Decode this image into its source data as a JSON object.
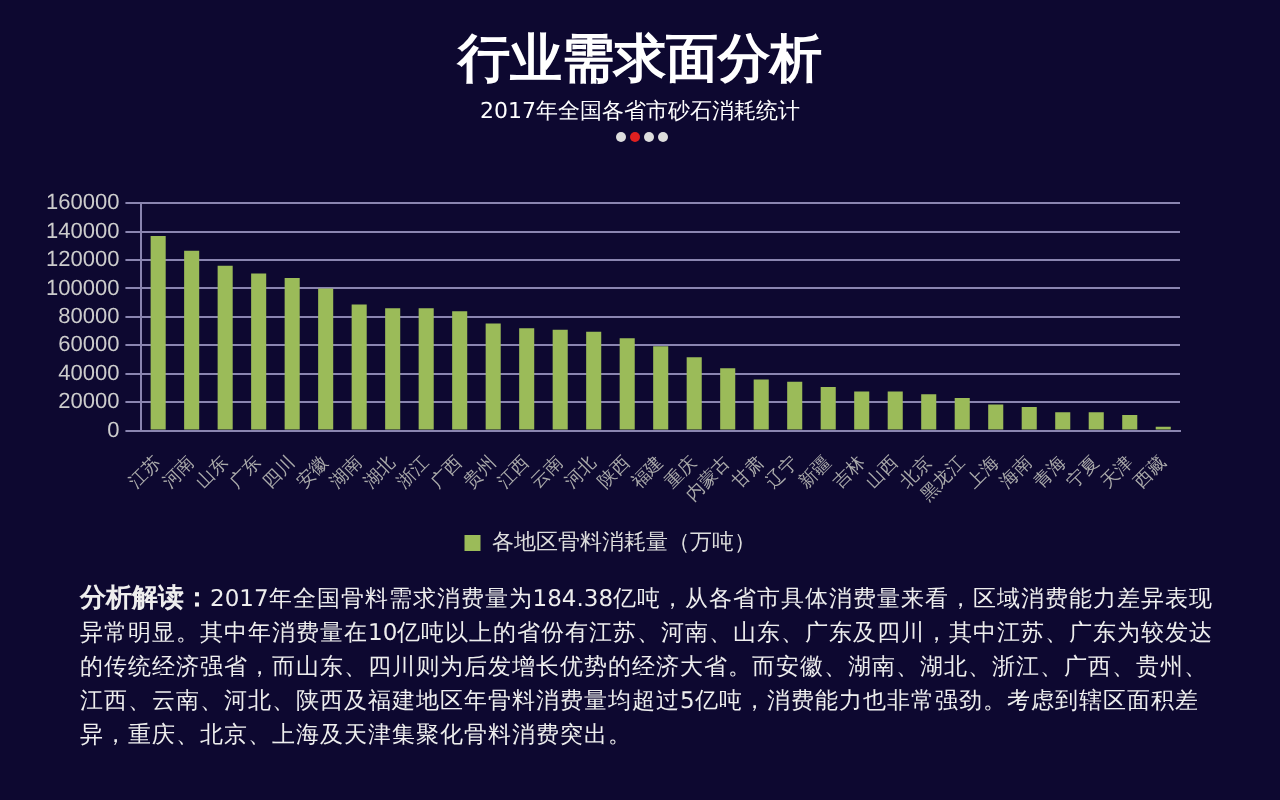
{
  "chart_data": {
    "type": "bar",
    "title": "行业需求面分析",
    "subtitle": "2017年全国各省市砂石消耗统计",
    "categories": [
      "江苏",
      "河南",
      "山东",
      "广东",
      "四川",
      "安徽",
      "湖南",
      "湖北",
      "浙江",
      "广西",
      "贵州",
      "江西",
      "云南",
      "河北",
      "陕西",
      "福建",
      "重庆",
      "内蒙古",
      "甘肃",
      "辽宁",
      "新疆",
      "吉林",
      "山西",
      "北京",
      "黑龙江",
      "上海",
      "海南",
      "青海",
      "宁夏",
      "天津",
      "西藏"
    ],
    "series": [
      {
        "name": "各地区骨料消耗量（万吨）",
        "color": "#9bbb59",
        "values": [
          137000,
          126600,
          116000,
          110600,
          107400,
          100000,
          88700,
          86000,
          86000,
          84000,
          75400,
          72000,
          71000,
          69500,
          65000,
          59400,
          51600,
          43900,
          36000,
          34300,
          30600,
          27400,
          27400,
          25600,
          22900,
          18300,
          16500,
          12800,
          12800,
          11000,
          2700
        ]
      }
    ],
    "ylim": [
      0,
      160000
    ],
    "yticks": [
      0,
      20000,
      40000,
      60000,
      80000,
      100000,
      120000,
      140000,
      160000
    ],
    "grid": "y",
    "legend": "bottom",
    "annotations": [
      "分析解读：",
      "2017年全国骨料需求消费量为184.38亿吨，从各省市具体消费量来看，区域消费能力差异表现异常明显。其中年消费量在10亿吨以上的省份有江苏、河南、山东、广东及四川，其中江苏、广东为较发达的传统经济强省，而山东、四川则为后发增长优势的经济大省。而安徽、湖南、湖北、浙江、广西、贵州、江西、云南、河北、陕西及福建地区年骨料消费量均超过5亿吨，消费能力也非常强劲。考虑到辖区面积差异，重庆、北京、上海及天津集聚化骨料消费突出。"
    ]
  }
}
